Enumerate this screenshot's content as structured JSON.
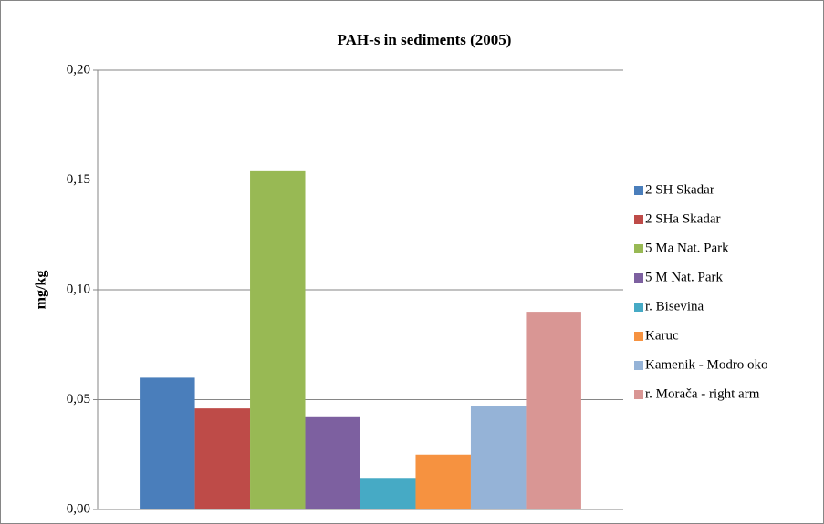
{
  "chart_data": {
    "type": "bar",
    "title": "PAH-s in sediments (2005)",
    "y_label": "mg/kg",
    "categories": [
      null
    ],
    "series": [
      {
        "name": "2 SH Skadar",
        "color": "#4a7ebb",
        "values": [
          0.06
        ]
      },
      {
        "name": "2 SHa Skadar",
        "color": "#be4b48",
        "values": [
          0.046
        ]
      },
      {
        "name": "5 Ma Nat. Park",
        "color": "#98b954",
        "values": [
          0.154
        ]
      },
      {
        "name": "5 M Nat. Park",
        "color": "#7d60a0",
        "values": [
          0.042
        ]
      },
      {
        "name": "r. Bisevina",
        "color": "#46aac5",
        "values": [
          0.014
        ]
      },
      {
        "name": "Karuc",
        "color": "#f69240",
        "values": [
          0.025
        ]
      },
      {
        "name": "Kamenik - Modro oko",
        "color": "#95b3d7",
        "values": [
          0.047
        ]
      },
      {
        "name": "r. Morača - right arm",
        "color": "#d99694",
        "values": [
          0.09
        ]
      }
    ],
    "ylim": [
      0,
      0.2
    ],
    "yticks": [
      {
        "value": 0,
        "label": "0,00"
      },
      {
        "value": 0.05,
        "label": "0,05"
      },
      {
        "value": 0.1,
        "label": "0,10"
      },
      {
        "value": 0.15,
        "label": "0,15"
      },
      {
        "value": 0.2,
        "label": "0,20"
      }
    ],
    "grid": true,
    "legend": "right"
  }
}
